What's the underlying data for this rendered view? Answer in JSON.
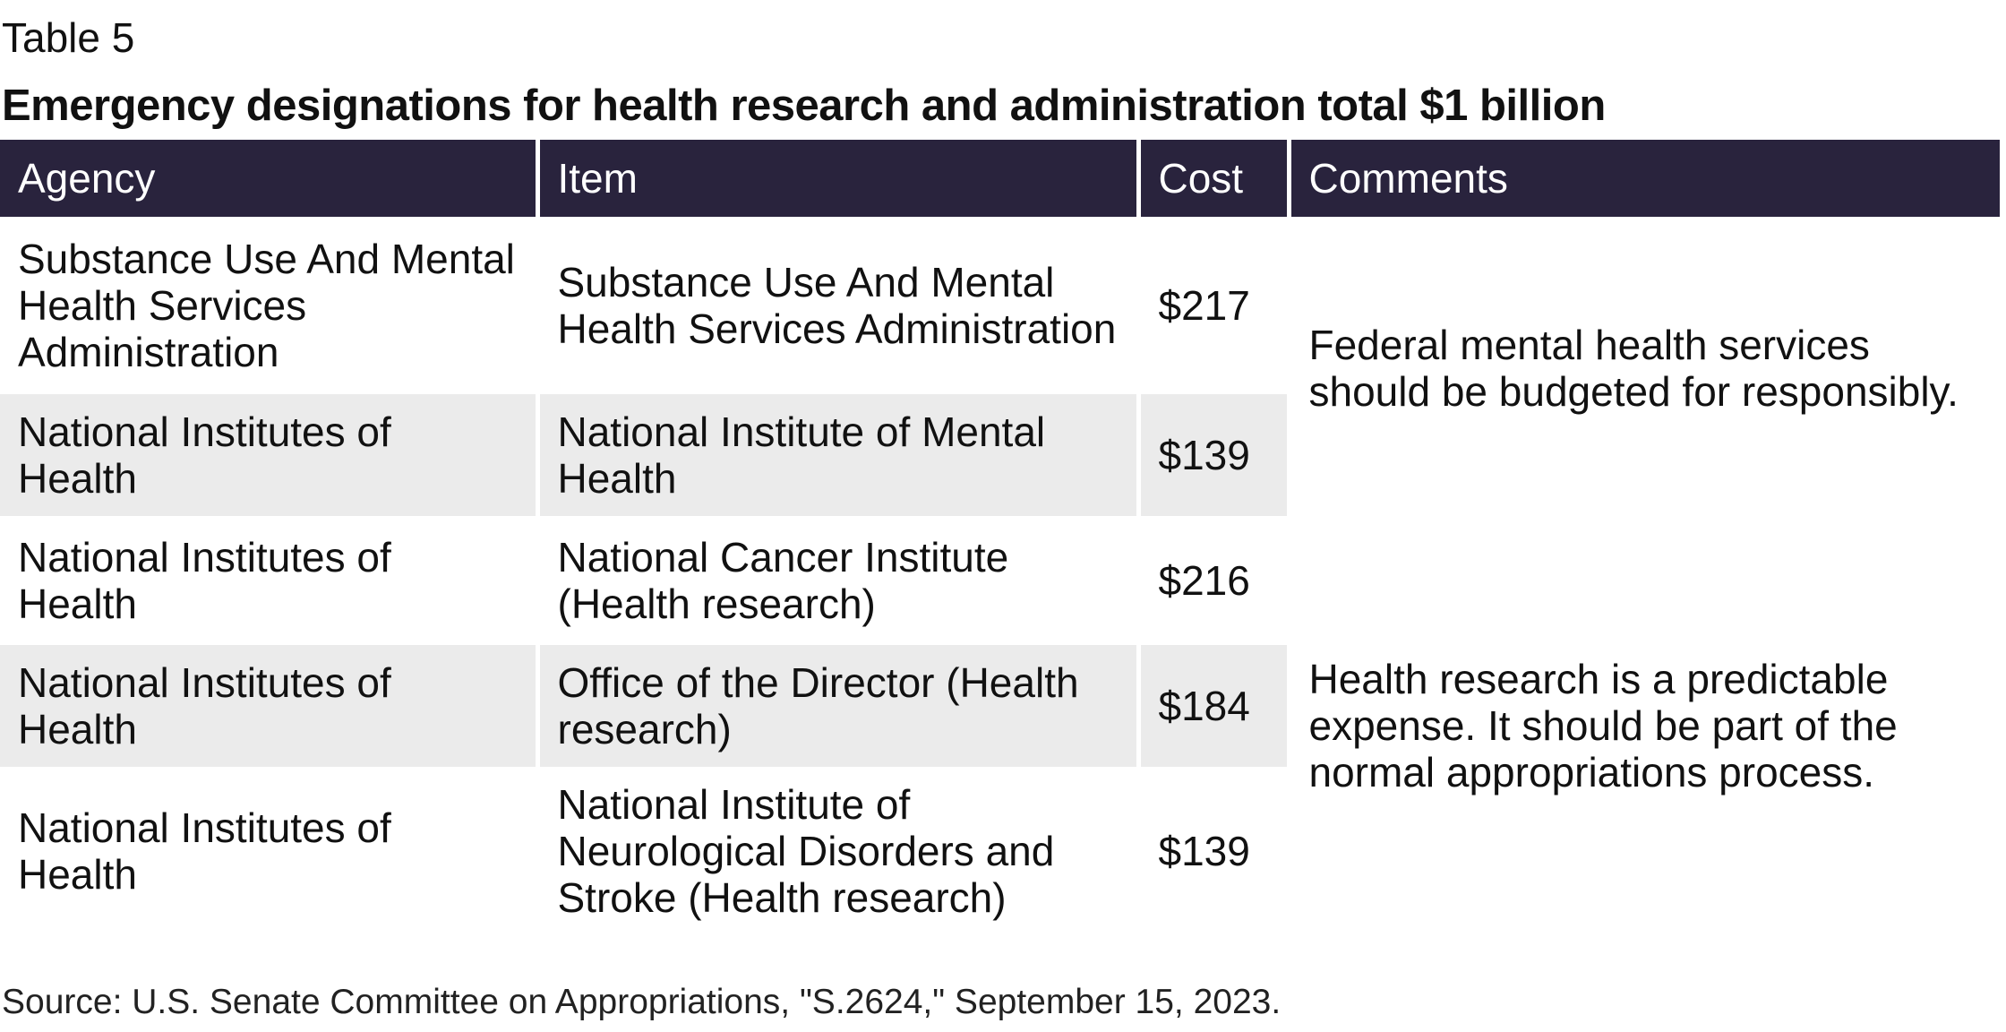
{
  "header": {
    "label": "Table 5",
    "title": "Emergency designations for health research and administration total $1 billion"
  },
  "table": {
    "columns": [
      "Agency",
      "Item",
      "Cost",
      "Comments"
    ],
    "rows": [
      [
        "Substance Use And Mental Health Services Administration",
        "Substance Use And Mental Health Services Administration",
        "$217",
        "Federal mental health services should be budgeted for responsibly."
      ],
      [
        "National Institutes of Health",
        "National Institute of Mental Health",
        "$139"
      ],
      [
        "National Institutes of Health",
        "National Cancer Institute (Health research)",
        "$216",
        "Health research is a predictable expense. It should be part of the normal appropriations process."
      ],
      [
        "National Institutes of Health",
        "Office of the Director (Health research)",
        "$184"
      ],
      [
        "National Institutes of Health",
        "National Institute of Neurological Disorders and Stroke (Health research)",
        "$139"
      ]
    ]
  },
  "footer": {
    "source": "Source: U.S. Senate Committee on Appropriations, \"S.2624,\" September 15, 2023."
  }
}
